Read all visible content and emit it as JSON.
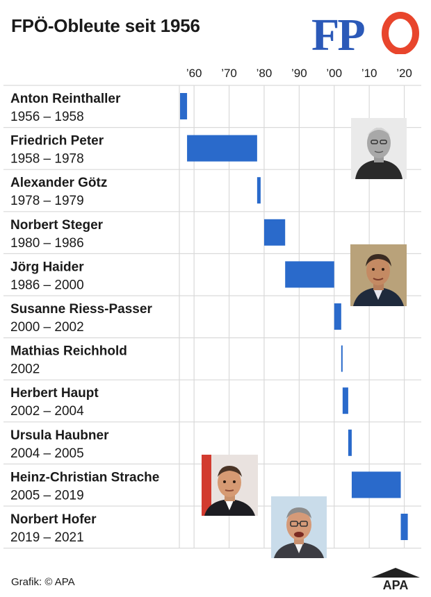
{
  "header": {
    "title": "FPÖ-Obleute seit 1956",
    "logo_text": "FPÖ"
  },
  "footer": {
    "credit": "Grafik: © APA",
    "agency_logo": "APA"
  },
  "colors": {
    "bar": "#2a6acb",
    "grid": "#d9d9d9",
    "logo_blue": "#2b59b8",
    "logo_red": "#e8452c",
    "text": "#1a1a1a"
  },
  "photos": [
    {
      "name": "friedrich-peter-photo"
    },
    {
      "name": "joerg-haider-photo"
    },
    {
      "name": "heinz-christian-strache-photo"
    },
    {
      "name": "norbert-hofer-photo"
    }
  ],
  "chart_data": {
    "type": "bar",
    "orientation": "horizontal-timeline",
    "title": "FPÖ-Obleute seit 1956",
    "xlim": [
      1956,
      2023
    ],
    "x_ticks": [
      1960,
      1970,
      1980,
      1990,
      2000,
      2010,
      2020
    ],
    "x_tick_labels": [
      "’60",
      "’70",
      "’80",
      "’90",
      "’00",
      "’10",
      "’20"
    ],
    "grid": true,
    "series": [
      {
        "name": "Anton Reinthaller",
        "period": "1956 – 1958",
        "start": 1956,
        "end": 1958
      },
      {
        "name": "Friedrich Peter",
        "period": "1958 – 1978",
        "start": 1958,
        "end": 1978
      },
      {
        "name": "Alexander Götz",
        "period": "1978 – 1979",
        "start": 1978,
        "end": 1979
      },
      {
        "name": "Norbert Steger",
        "period": "1980 – 1986",
        "start": 1980,
        "end": 1986
      },
      {
        "name": "Jörg Haider",
        "period": "1986 – 2000",
        "start": 1986,
        "end": 2000
      },
      {
        "name": "Susanne Riess-Passer",
        "period": "2000 – 2002",
        "start": 2000,
        "end": 2002
      },
      {
        "name": "Mathias Reichhold",
        "period": "2002",
        "start": 2002,
        "end": 2002.2
      },
      {
        "name": "Herbert Haupt",
        "period": "2002 – 2004",
        "start": 2002.4,
        "end": 2004
      },
      {
        "name": "Ursula Haubner",
        "period": "2004 – 2005",
        "start": 2004,
        "end": 2005
      },
      {
        "name": "Heinz-Christian Strache",
        "period": "2005 – 2019",
        "start": 2005,
        "end": 2019
      },
      {
        "name": "Norbert Hofer",
        "period": "2019 – 2021",
        "start": 2019,
        "end": 2021
      }
    ]
  }
}
